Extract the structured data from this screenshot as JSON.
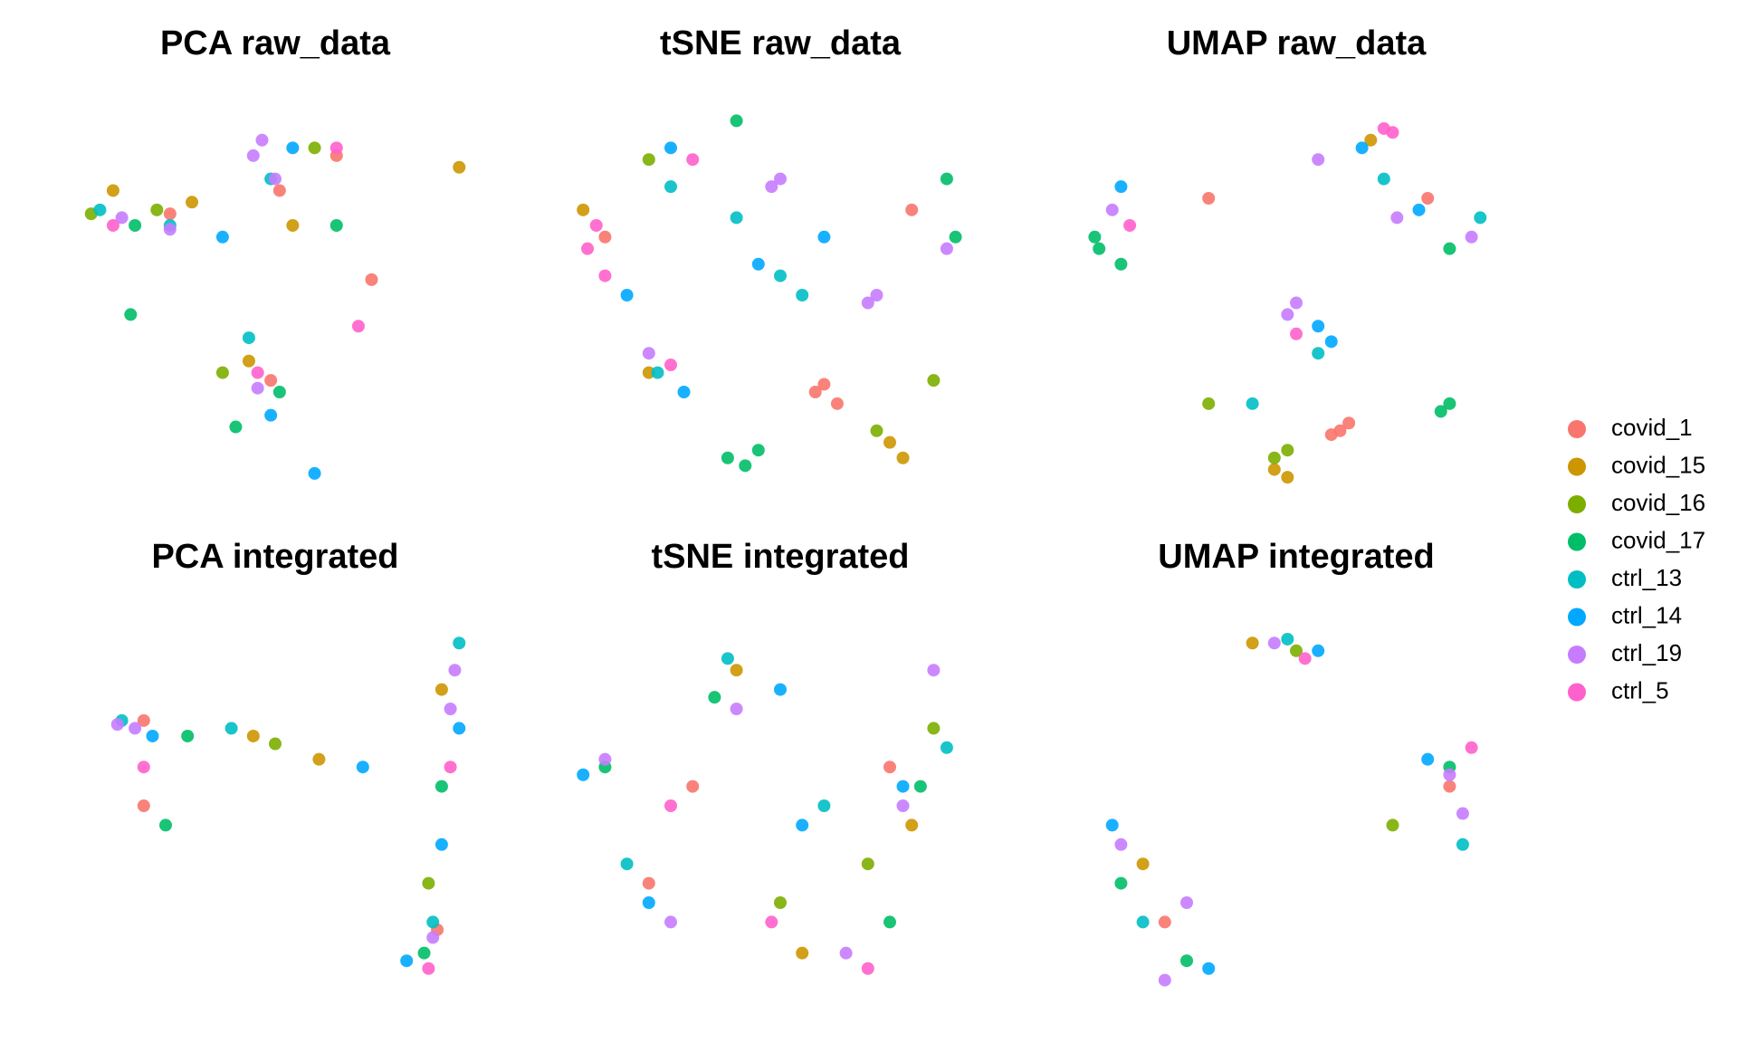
{
  "legend": {
    "names": [
      "covid_1",
      "covid_15",
      "covid_16",
      "covid_17",
      "ctrl_13",
      "ctrl_14",
      "ctrl_19",
      "ctrl_5"
    ],
    "colors": [
      "#F8766D",
      "#CD9600",
      "#7CAE00",
      "#00BE67",
      "#00BFC4",
      "#00A9FF",
      "#C77CFF",
      "#FF61CC"
    ]
  },
  "chart_data": [
    {
      "type": "scatter",
      "title": "PCA raw_data",
      "xlim": [
        0,
        100
      ],
      "ylim": [
        0,
        100
      ],
      "series": [
        {
          "x": [
            64,
            72,
            49,
            26,
            51
          ],
          "y": [
            86,
            54,
            28,
            71,
            77
          ]
        },
        {
          "x": [
            13,
            92,
            54,
            44,
            31
          ],
          "y": [
            77,
            83,
            68,
            33,
            74
          ]
        },
        {
          "x": [
            8,
            59,
            38,
            23
          ],
          "y": [
            71,
            88,
            30,
            72
          ]
        },
        {
          "x": [
            18,
            64,
            41,
            51,
            17
          ],
          "y": [
            68,
            68,
            16,
            25,
            45
          ]
        },
        {
          "x": [
            26,
            49,
            44,
            10
          ],
          "y": [
            68,
            80,
            39,
            72
          ]
        },
        {
          "x": [
            54,
            38,
            49,
            59
          ],
          "y": [
            88,
            65,
            19,
            4
          ]
        },
        {
          "x": [
            47,
            45,
            26,
            15,
            46,
            50
          ],
          "y": [
            90,
            86,
            67,
            70,
            26,
            80
          ]
        },
        {
          "x": [
            69,
            64,
            13,
            46
          ],
          "y": [
            42,
            88,
            68,
            30
          ]
        }
      ]
    },
    {
      "type": "scatter",
      "title": "tSNE raw_data",
      "xlim": [
        0,
        100
      ],
      "ylim": [
        0,
        100
      ],
      "series": [
        {
          "x": [
            60,
            63,
            58,
            80,
            10
          ],
          "y": [
            27,
            22,
            25,
            72,
            65
          ]
        },
        {
          "x": [
            75,
            78,
            5,
            20
          ],
          "y": [
            12,
            8,
            72,
            30
          ]
        },
        {
          "x": [
            72,
            85,
            20
          ],
          "y": [
            15,
            28,
            85
          ]
        },
        {
          "x": [
            38,
            42,
            45,
            40,
            88,
            90
          ],
          "y": [
            8,
            6,
            10,
            95,
            80,
            65
          ]
        },
        {
          "x": [
            50,
            55,
            25,
            22,
            40
          ],
          "y": [
            55,
            50,
            78,
            30,
            70
          ]
        },
        {
          "x": [
            45,
            15,
            28,
            60,
            25
          ],
          "y": [
            58,
            50,
            25,
            65,
            88
          ]
        },
        {
          "x": [
            48,
            50,
            72,
            70,
            88,
            20
          ],
          "y": [
            78,
            80,
            50,
            48,
            62,
            35
          ]
        },
        {
          "x": [
            6,
            10,
            8,
            25,
            30
          ],
          "y": [
            62,
            55,
            68,
            32,
            85
          ]
        }
      ]
    },
    {
      "type": "scatter",
      "title": "UMAP raw_data",
      "xlim": [
        0,
        100
      ],
      "ylim": [
        0,
        100
      ],
      "series": [
        {
          "x": [
            60,
            62,
            58,
            30,
            80
          ],
          "y": [
            15,
            17,
            14,
            75,
            75
          ]
        },
        {
          "x": [
            45,
            48,
            67
          ],
          "y": [
            5,
            3,
            90
          ]
        },
        {
          "x": [
            48,
            45,
            30
          ],
          "y": [
            10,
            8,
            22
          ]
        },
        {
          "x": [
            5,
            4,
            83,
            85,
            85,
            10
          ],
          "y": [
            62,
            65,
            20,
            22,
            62,
            58
          ]
        },
        {
          "x": [
            55,
            70,
            40,
            92
          ],
          "y": [
            35,
            80,
            22,
            70
          ]
        },
        {
          "x": [
            55,
            58,
            65,
            78,
            10
          ],
          "y": [
            42,
            38,
            88,
            72,
            78
          ]
        },
        {
          "x": [
            48,
            50,
            73,
            90,
            8,
            55
          ],
          "y": [
            45,
            48,
            70,
            65,
            72,
            85
          ]
        },
        {
          "x": [
            70,
            72,
            12,
            50
          ],
          "y": [
            93,
            92,
            68,
            40
          ]
        }
      ]
    },
    {
      "type": "scatter",
      "title": "PCA integrated",
      "xlim": [
        0,
        100
      ],
      "ylim": [
        0,
        100
      ],
      "series": [
        {
          "x": [
            20,
            20,
            87
          ],
          "y": [
            72,
            50,
            18
          ]
        },
        {
          "x": [
            45,
            60,
            88
          ],
          "y": [
            68,
            62,
            80
          ]
        },
        {
          "x": [
            50,
            85
          ],
          "y": [
            66,
            30
          ]
        },
        {
          "x": [
            30,
            88,
            84,
            25
          ],
          "y": [
            68,
            55,
            12,
            45
          ]
        },
        {
          "x": [
            15,
            40,
            92,
            86
          ],
          "y": [
            72,
            70,
            92,
            20
          ]
        },
        {
          "x": [
            22,
            70,
            88,
            80,
            92
          ],
          "y": [
            68,
            60,
            40,
            10,
            70
          ]
        },
        {
          "x": [
            18,
            14,
            91,
            90,
            86
          ],
          "y": [
            70,
            71,
            85,
            75,
            16
          ]
        },
        {
          "x": [
            20,
            90,
            85
          ],
          "y": [
            60,
            60,
            8
          ]
        }
      ]
    },
    {
      "type": "scatter",
      "title": "tSNE integrated",
      "xlim": [
        0,
        100
      ],
      "ylim": [
        0,
        100
      ],
      "series": [
        {
          "x": [
            30,
            75,
            20
          ],
          "y": [
            55,
            60,
            30
          ]
        },
        {
          "x": [
            40,
            80,
            55
          ],
          "y": [
            85,
            45,
            12
          ]
        },
        {
          "x": [
            85,
            50,
            70
          ],
          "y": [
            70,
            25,
            35
          ]
        },
        {
          "x": [
            82,
            10,
            75,
            35
          ],
          "y": [
            55,
            60,
            20,
            78
          ]
        },
        {
          "x": [
            38,
            88,
            15,
            60
          ],
          "y": [
            88,
            65,
            35,
            50
          ]
        },
        {
          "x": [
            5,
            55,
            50,
            20,
            78
          ],
          "y": [
            58,
            45,
            80,
            25,
            55
          ]
        },
        {
          "x": [
            40,
            78,
            10,
            65,
            85,
            25
          ],
          "y": [
            75,
            50,
            62,
            12,
            85,
            20
          ]
        },
        {
          "x": [
            25,
            48,
            70
          ],
          "y": [
            50,
            20,
            8
          ]
        }
      ]
    },
    {
      "type": "scatter",
      "title": "UMAP integrated",
      "xlim": [
        0,
        100
      ],
      "ylim": [
        0,
        100
      ],
      "series": [
        {
          "x": [
            20,
            85
          ],
          "y": [
            20,
            55
          ]
        },
        {
          "x": [
            40,
            15
          ],
          "y": [
            92,
            35
          ]
        },
        {
          "x": [
            72,
            50
          ],
          "y": [
            45,
            90
          ]
        },
        {
          "x": [
            85,
            25,
            10
          ],
          "y": [
            60,
            10,
            30
          ]
        },
        {
          "x": [
            48,
            88,
            15
          ],
          "y": [
            93,
            40,
            20
          ]
        },
        {
          "x": [
            55,
            80,
            30,
            8
          ],
          "y": [
            90,
            62,
            8,
            45
          ]
        },
        {
          "x": [
            45,
            85,
            88,
            20,
            10,
            25
          ],
          "y": [
            92,
            58,
            48,
            5,
            40,
            25
          ]
        },
        {
          "x": [
            52,
            90
          ],
          "y": [
            88,
            65
          ]
        }
      ]
    }
  ]
}
